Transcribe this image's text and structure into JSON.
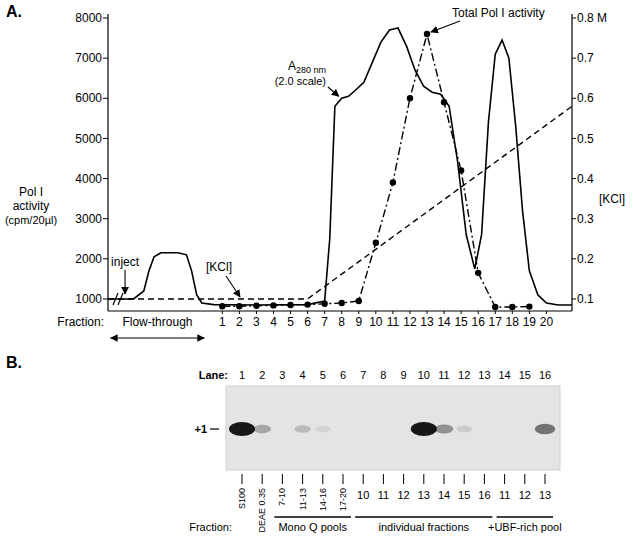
{
  "chart_data": {
    "type": "line",
    "panel_label": "A.",
    "xlabel": "Fraction:",
    "ylabel": [
      "Pol I",
      "activity",
      "(cpm/20µl)"
    ],
    "y2label": "[KCl]",
    "xlim": [
      -5.7,
      21.5
    ],
    "xticks": [
      1,
      2,
      3,
      4,
      5,
      6,
      7,
      8,
      9,
      10,
      11,
      12,
      13,
      14,
      15,
      16,
      17,
      18,
      19,
      20
    ],
    "ylim": [
      700,
      8100
    ],
    "yticks": [
      1000,
      2000,
      3000,
      4000,
      5000,
      6000,
      7000,
      8000
    ],
    "y2lim": [
      0.07,
      0.81
    ],
    "y2ticks": [
      {
        "value": 0.8,
        "label": "0.8 M"
      },
      0.7,
      0.6,
      0.5,
      0.4,
      0.3,
      0.2,
      0.1
    ],
    "annotations": [
      {
        "text": "inject",
        "x": -4.7
      },
      {
        "text": "Flow-through",
        "x": [
          -5.6,
          0
        ]
      }
    ],
    "series": [
      {
        "name": "A280 nm (2.0 scale)",
        "color": "#000000",
        "line_style": "solid",
        "x": [
          -5.7,
          -4.2,
          -3.6,
          -3.3,
          -3.0,
          -2.6,
          -1.6,
          -1.1,
          -0.8,
          -0.5,
          -0.2,
          0.5,
          3,
          6,
          7,
          7.3,
          7.6,
          8,
          8.4,
          8.8,
          9.3,
          9.8,
          10.3,
          10.8,
          11.3,
          11.8,
          12.3,
          12.8,
          13.3,
          13.8,
          14.3,
          14.8,
          15.3,
          15.8,
          16.2,
          16.6,
          17,
          17.4,
          17.8,
          18.2,
          18.6,
          19,
          19.5,
          20,
          20.7,
          21.5
        ],
        "values": [
          1000,
          1000,
          1200,
          1700,
          2050,
          2150,
          2150,
          2100,
          1700,
          1100,
          900,
          860,
          850,
          860,
          950,
          2500,
          5800,
          6000,
          6050,
          6200,
          6400,
          6900,
          7400,
          7700,
          7750,
          7300,
          6700,
          6300,
          6150,
          6100,
          5800,
          4400,
          2600,
          1750,
          2600,
          5400,
          7100,
          7450,
          7000,
          5300,
          3200,
          1700,
          1100,
          900,
          850,
          850
        ]
      },
      {
        "name": "Total Pol I activity",
        "color": "#000000",
        "line_style": "dashdot",
        "marker": "circle",
        "x": [
          1,
          2,
          3,
          4,
          5,
          6,
          7,
          8,
          9,
          10,
          11,
          12,
          13,
          14,
          15,
          16,
          17,
          18,
          19
        ],
        "values": [
          820,
          820,
          830,
          840,
          850,
          860,
          880,
          900,
          950,
          2400,
          3900,
          6000,
          7600,
          5900,
          4200,
          1650,
          800,
          800,
          810
        ]
      },
      {
        "name": "[KCl]",
        "color": "#000000",
        "line_style": "dashed",
        "axis": "y2",
        "x": [
          -5.7,
          6,
          21.5
        ],
        "values": [
          0.1,
          0.1,
          0.58
        ]
      }
    ]
  },
  "gel": {
    "panel_label": "B.",
    "lane_title": "Lane:",
    "lanes": [
      1,
      2,
      3,
      4,
      5,
      6,
      7,
      8,
      9,
      10,
      11,
      12,
      13,
      14,
      15,
      16
    ],
    "band_label": "+1",
    "band_intensity": [
      1,
      0.3,
      0,
      0.2,
      0.08,
      0,
      0,
      0,
      0,
      1,
      0.4,
      0.12,
      0,
      0,
      0,
      0.55
    ],
    "fraction_title": "Fraction:",
    "fractions": [
      "S100",
      "DEAE 0.35",
      "7-10",
      "11-13",
      "14-16",
      "17-20",
      "10",
      "11",
      "12",
      "13",
      "14",
      "15",
      "16",
      "11",
      "12",
      "13"
    ],
    "groups": [
      {
        "label": "Mono Q pools",
        "lanes": [
          3,
          6
        ]
      },
      {
        "label": "individual fractions",
        "lanes": [
          7,
          13
        ]
      },
      {
        "label": "+UBF-rich pool",
        "lanes": [
          14,
          16
        ]
      }
    ]
  }
}
